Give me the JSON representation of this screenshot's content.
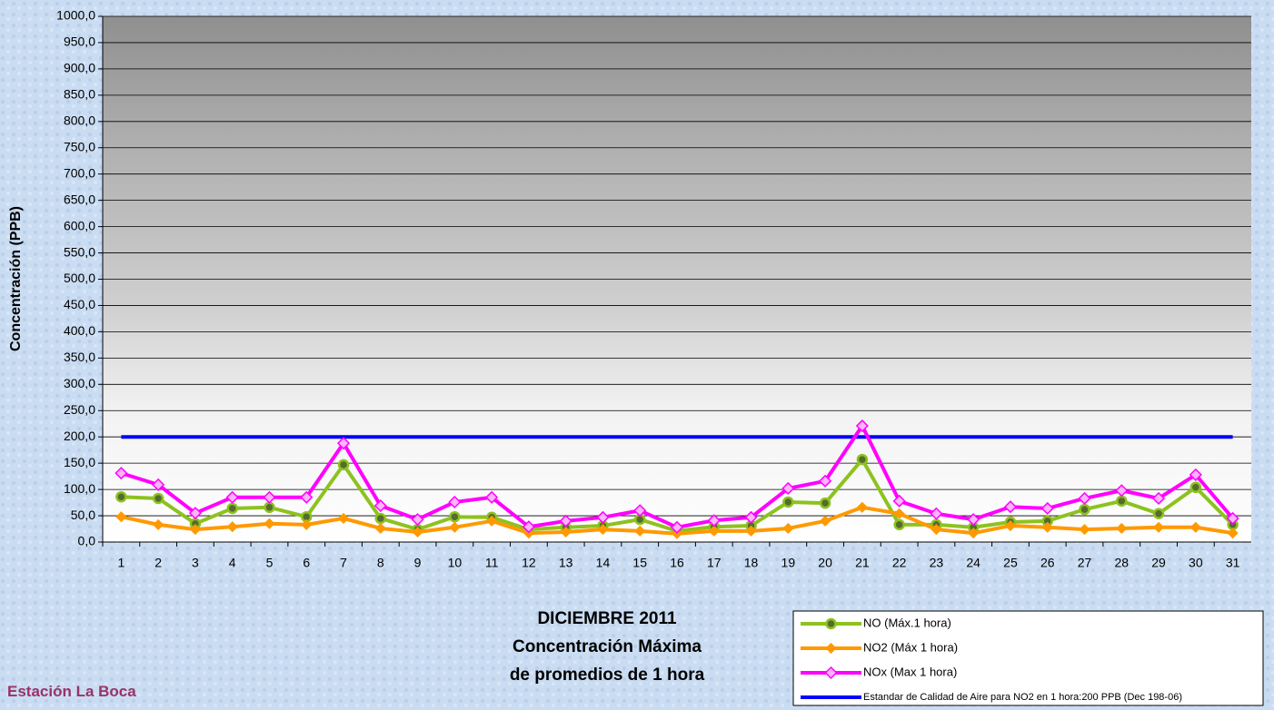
{
  "chart_data": {
    "type": "line",
    "station": "Estación La Boca",
    "title_lines": [
      "DICIEMBRE 2011",
      "Concentración Máxima",
      "de promedios de 1 hora"
    ],
    "y_label": "Concentración  (PPB)",
    "categories": [
      "1",
      "2",
      "3",
      "4",
      "5",
      "6",
      "7",
      "8",
      "9",
      "10",
      "11",
      "12",
      "13",
      "14",
      "15",
      "16",
      "17",
      "18",
      "19",
      "20",
      "21",
      "22",
      "23",
      "24",
      "25",
      "26",
      "27",
      "28",
      "29",
      "30",
      "31"
    ],
    "ylim": [
      0,
      1000
    ],
    "yticks": [
      {
        "value": 0,
        "label": "0,0"
      },
      {
        "value": 50,
        "label": "50,0"
      },
      {
        "value": 100,
        "label": "100,0"
      },
      {
        "value": 150,
        "label": "150,0"
      },
      {
        "value": 200,
        "label": "200,0"
      },
      {
        "value": 250,
        "label": "250,0"
      },
      {
        "value": 300,
        "label": "300,0"
      },
      {
        "value": 350,
        "label": "350,0"
      },
      {
        "value": 400,
        "label": "400,0"
      },
      {
        "value": 450,
        "label": "450,0"
      },
      {
        "value": 500,
        "label": "500,0"
      },
      {
        "value": 550,
        "label": "550,0"
      },
      {
        "value": 600,
        "label": "600,0"
      },
      {
        "value": 650,
        "label": "650,0"
      },
      {
        "value": 700,
        "label": "700,0"
      },
      {
        "value": 750,
        "label": "750,0"
      },
      {
        "value": 800,
        "label": "800,0"
      },
      {
        "value": 850,
        "label": "850,0"
      },
      {
        "value": 900,
        "label": "900,0"
      },
      {
        "value": 950,
        "label": "950,0"
      },
      {
        "value": 1000,
        "label": "1000,0"
      }
    ],
    "grid": true,
    "legend": "bottom-right",
    "series": [
      {
        "name": "NO (Máx.1 hora)",
        "color": "#8dc21f",
        "marker": "circle",
        "values": [
          86,
          83,
          35,
          64,
          66,
          48,
          147,
          45,
          24,
          48,
          47,
          24,
          28,
          31,
          43,
          21,
          29,
          31,
          76,
          74,
          157,
          33,
          33,
          28,
          38,
          40,
          62,
          78,
          54,
          104,
          33
        ]
      },
      {
        "name": "NO2 (Máx 1 hora)",
        "color": "#ff9900",
        "marker": "diamond",
        "values": [
          48,
          33,
          24,
          29,
          35,
          33,
          45,
          26,
          19,
          28,
          40,
          17,
          19,
          24,
          21,
          16,
          21,
          21,
          26,
          40,
          66,
          54,
          24,
          17,
          31,
          28,
          24,
          26,
          28,
          28,
          17
        ]
      },
      {
        "name": "NOx (Max 1 hora)",
        "color": "#ff00ff",
        "marker": "diamond",
        "values": [
          131,
          109,
          55,
          85,
          85,
          85,
          188,
          69,
          43,
          76,
          85,
          29,
          40,
          47,
          60,
          28,
          41,
          47,
          102,
          116,
          221,
          78,
          54,
          43,
          67,
          64,
          83,
          98,
          83,
          128,
          45
        ]
      },
      {
        "name": "Estandar de Calidad de Aire para NO2 en 1 hora:200 PPB (Dec 198-06)",
        "color": "#0000ff",
        "marker": "none",
        "values": [
          200,
          200,
          200,
          200,
          200,
          200,
          200,
          200,
          200,
          200,
          200,
          200,
          200,
          200,
          200,
          200,
          200,
          200,
          200,
          200,
          200,
          200,
          200,
          200,
          200,
          200,
          200,
          200,
          200,
          200,
          200
        ]
      }
    ]
  }
}
